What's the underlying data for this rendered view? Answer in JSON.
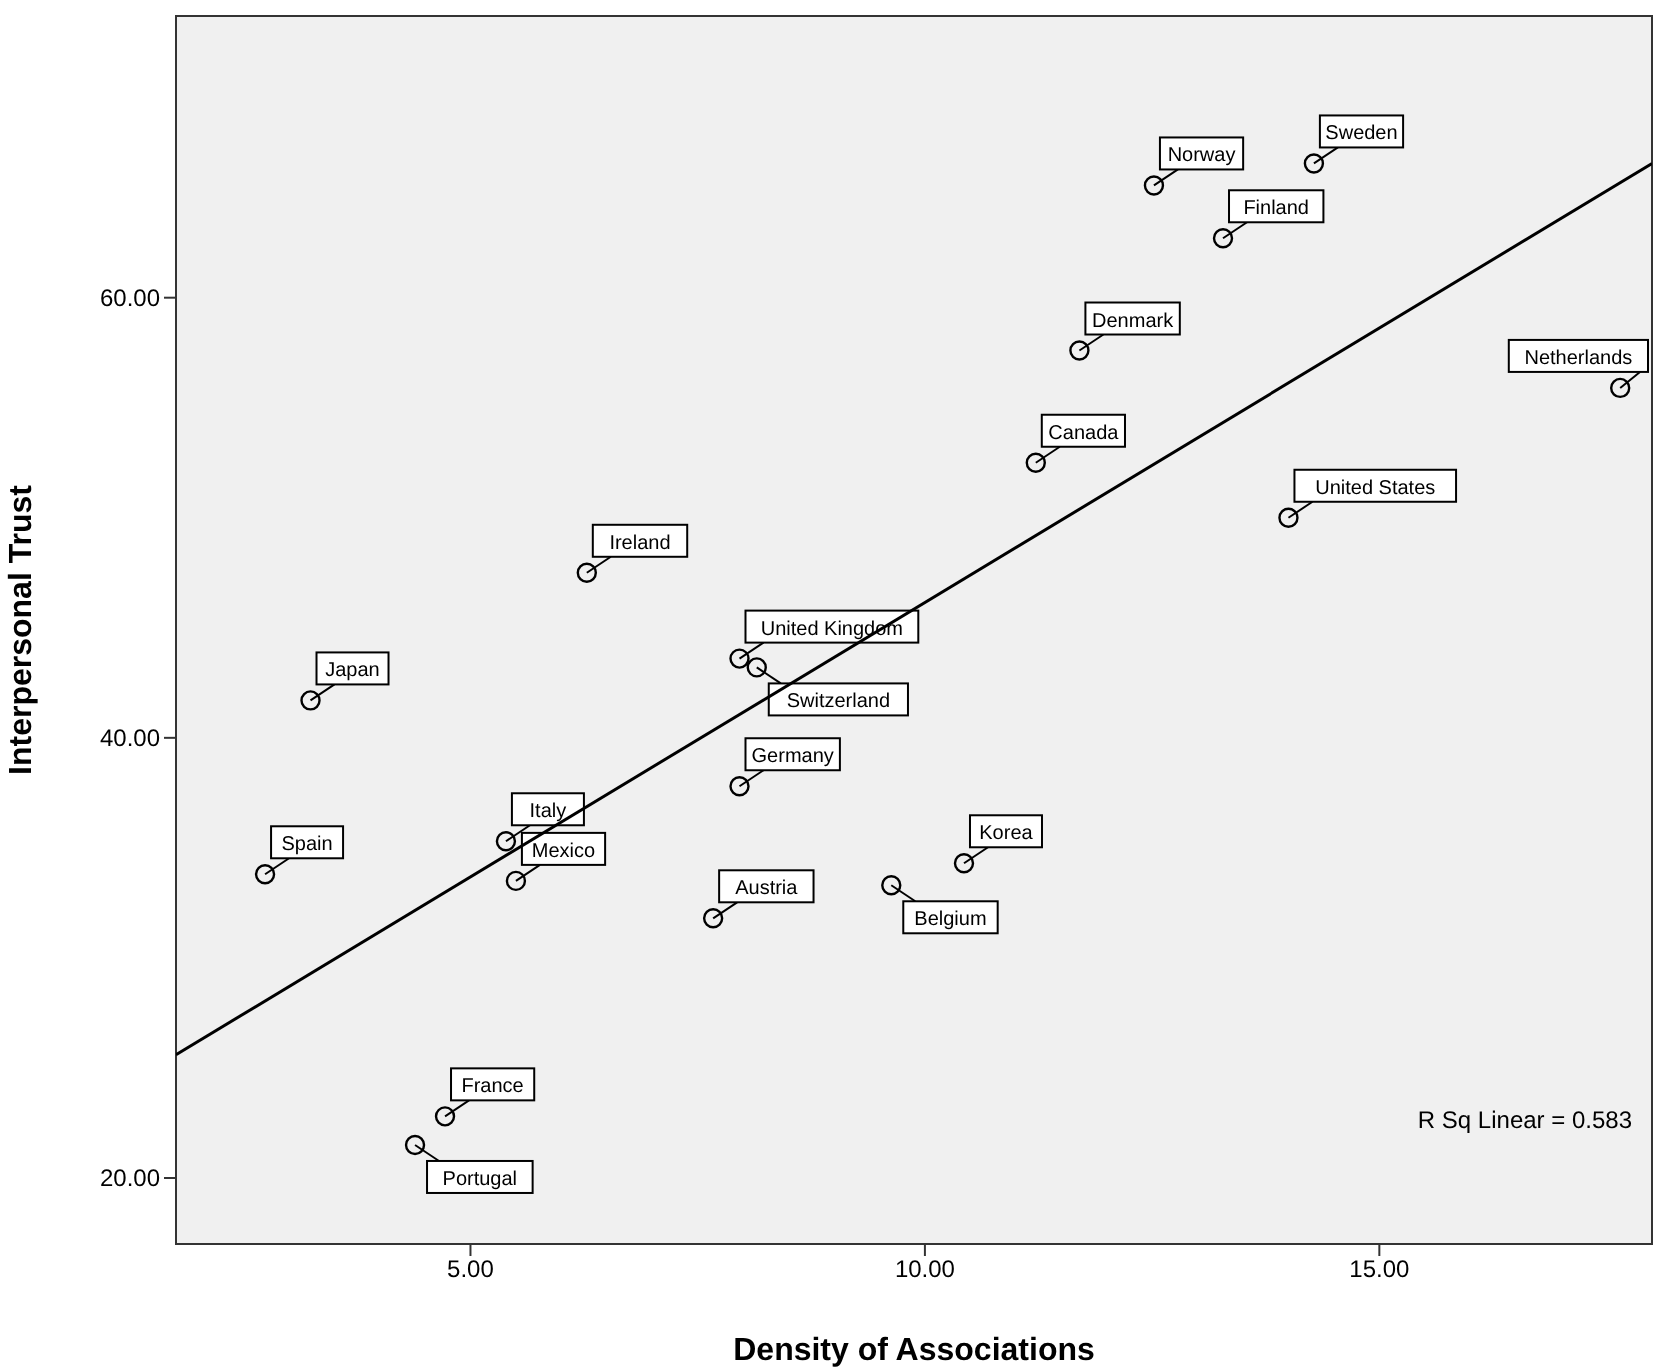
{
  "chart_data": {
    "type": "scatter",
    "xlabel": "Density of Associations",
    "ylabel": "Interpersonal Trust",
    "xlim": [
      1.76,
      18
    ],
    "ylim": [
      17,
      72.8
    ],
    "xticks": [
      {
        "value": 5,
        "label": "5.00"
      },
      {
        "value": 10,
        "label": "10.00"
      },
      {
        "value": 15,
        "label": "15.00"
      }
    ],
    "yticks": [
      {
        "value": 20,
        "label": "20.00"
      },
      {
        "value": 40,
        "label": "40.00"
      },
      {
        "value": 60,
        "label": "60.00"
      }
    ],
    "marker": "circle",
    "series": [
      {
        "type": "scatter",
        "color": "#000000",
        "x": [
          14.28,
          12.52,
          13.28,
          11.7,
          17.65,
          11.22,
          14.0,
          6.28,
          3.24,
          7.96,
          8.15,
          7.96,
          5.39,
          5.5,
          2.74,
          7.67,
          9.63,
          10.43,
          4.72,
          4.39
        ],
        "values": [
          66.1,
          65.1,
          62.7,
          57.6,
          55.9,
          52.5,
          50.0,
          47.5,
          41.7,
          43.6,
          43.2,
          37.8,
          35.3,
          33.5,
          33.8,
          31.8,
          33.3,
          34.3,
          22.8,
          21.5
        ]
      },
      {
        "type": "line",
        "color": "#000000",
        "marker": "none",
        "x": [
          1.76,
          18
        ],
        "values": [
          25.6,
          66.1
        ]
      }
    ],
    "annotations": [
      {
        "text": "Sweden",
        "x": 14.28,
        "y": 66.1
      },
      {
        "text": "Norway",
        "x": 12.52,
        "y": 65.1
      },
      {
        "text": "Finland",
        "x": 13.28,
        "y": 62.7
      },
      {
        "text": "Denmark",
        "x": 11.7,
        "y": 57.6
      },
      {
        "text": "Netherlands",
        "x": 17.65,
        "y": 55.9
      },
      {
        "text": "Canada",
        "x": 11.22,
        "y": 52.5
      },
      {
        "text": "United States",
        "x": 14.0,
        "y": 50.0
      },
      {
        "text": "Ireland",
        "x": 6.28,
        "y": 47.5
      },
      {
        "text": "Japan",
        "x": 3.24,
        "y": 41.7
      },
      {
        "text": "United Kingdom",
        "x": 7.96,
        "y": 43.6
      },
      {
        "text": "Switzerland",
        "x": 8.15,
        "y": 43.2
      },
      {
        "text": "Germany",
        "x": 7.96,
        "y": 37.8
      },
      {
        "text": "Italy",
        "x": 5.39,
        "y": 35.3
      },
      {
        "text": "Mexico",
        "x": 5.5,
        "y": 33.5
      },
      {
        "text": "Spain",
        "x": 2.74,
        "y": 33.8
      },
      {
        "text": "Austria",
        "x": 7.67,
        "y": 31.8
      },
      {
        "text": "Belgium",
        "x": 9.63,
        "y": 33.3
      },
      {
        "text": "Korea",
        "x": 10.43,
        "y": 34.3
      },
      {
        "text": "France",
        "x": 4.72,
        "y": 22.8
      },
      {
        "text": "Portugal",
        "x": 4.39,
        "y": 21.5
      },
      "R Sq Linear = 0.583"
    ]
  }
}
